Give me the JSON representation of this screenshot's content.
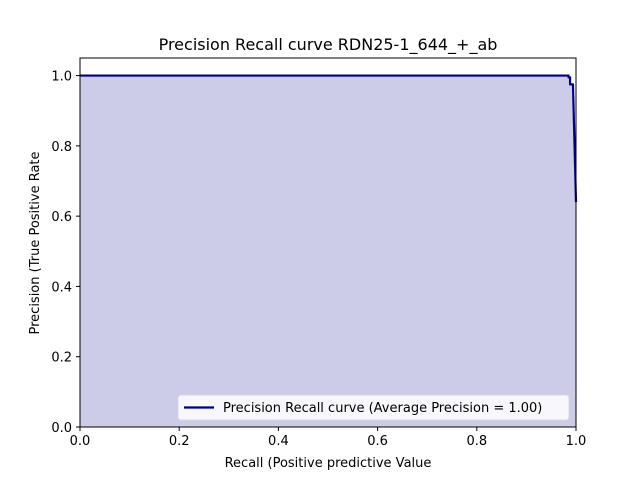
{
  "chart_data": {
    "type": "area",
    "title": "Precision Recall curve RDN25-1_644_+_ab",
    "xlabel": "Recall (Positive predictive Value",
    "ylabel": "Precision (True Positive Rate",
    "xlim": [
      0.0,
      1.0
    ],
    "ylim": [
      0.0,
      1.05
    ],
    "xticks": [
      0.0,
      0.2,
      0.4,
      0.6,
      0.8,
      1.0
    ],
    "yticks": [
      0.0,
      0.2,
      0.4,
      0.6,
      0.8,
      1.0
    ],
    "xtick_labels": [
      "0.0",
      "0.2",
      "0.4",
      "0.6",
      "0.8",
      "1.0"
    ],
    "ytick_labels": [
      "0.0",
      "0.2",
      "0.4",
      "0.6",
      "0.8",
      "1.0"
    ],
    "grid": false,
    "legend_position": "lower-right",
    "series": [
      {
        "name": "Precision Recall curve (Average Precision = 1.00)",
        "color": "#000080",
        "fill_color": "#cccce8",
        "x": [
          0.0,
          0.985,
          0.985,
          0.988,
          0.988,
          0.994,
          0.994,
          1.0
        ],
        "y": [
          1.0,
          1.0,
          0.995,
          0.995,
          0.975,
          0.975,
          0.97,
          0.64
        ]
      }
    ]
  }
}
